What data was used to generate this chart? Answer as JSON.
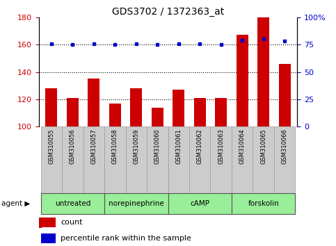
{
  "title": "GDS3702 / 1372363_at",
  "samples": [
    "GSM310055",
    "GSM310056",
    "GSM310057",
    "GSM310058",
    "GSM310059",
    "GSM310060",
    "GSM310061",
    "GSM310062",
    "GSM310063",
    "GSM310064",
    "GSM310065",
    "GSM310066"
  ],
  "counts": [
    128,
    121,
    135,
    117,
    128,
    114,
    127,
    121,
    121,
    167,
    180,
    146
  ],
  "percentile_ranks": [
    76,
    75,
    76,
    75,
    76,
    75,
    76,
    76,
    75,
    79,
    80,
    78
  ],
  "agents": [
    {
      "label": "untreated",
      "start": 0,
      "end": 3
    },
    {
      "label": "norepinephrine",
      "start": 3,
      "end": 6
    },
    {
      "label": "cAMP",
      "start": 6,
      "end": 9
    },
    {
      "label": "forskolin",
      "start": 9,
      "end": 12
    }
  ],
  "left_ylim": [
    100,
    180
  ],
  "left_yticks": [
    100,
    120,
    140,
    160,
    180
  ],
  "right_ylim": [
    0,
    100
  ],
  "right_yticks": [
    0,
    25,
    50,
    75,
    100
  ],
  "bar_color": "#cc0000",
  "dot_color": "#0000cc",
  "sample_row_color": "#cccccc",
  "agent_row_color": "#99ee99",
  "left_label_color": "#cc0000",
  "right_label_color": "#0000cc",
  "legend_count_color": "#cc0000",
  "legend_pct_color": "#0000cc",
  "grid_color": "#000000"
}
